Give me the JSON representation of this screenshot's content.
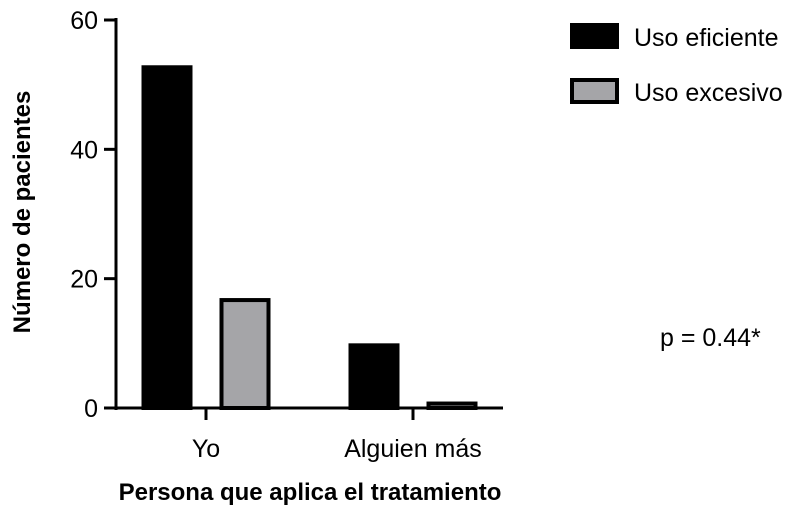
{
  "chart_data": {
    "type": "bar",
    "categories": [
      "Yo",
      "Alguien más"
    ],
    "series": [
      {
        "name": "Uso eficiente",
        "color": "#000000",
        "values": [
          53,
          10
        ]
      },
      {
        "name": "Uso excesivo",
        "color": "#a5a5a8",
        "values": [
          17,
          1
        ]
      }
    ],
    "xlabel": "Persona que aplica el tratamiento",
    "ylabel": "Número de pacientes",
    "ylim": [
      0,
      60
    ],
    "yticks": [
      0,
      20,
      40,
      60
    ],
    "legend_position": "top-right",
    "grid": false,
    "annotation": "p = 0.44*"
  }
}
